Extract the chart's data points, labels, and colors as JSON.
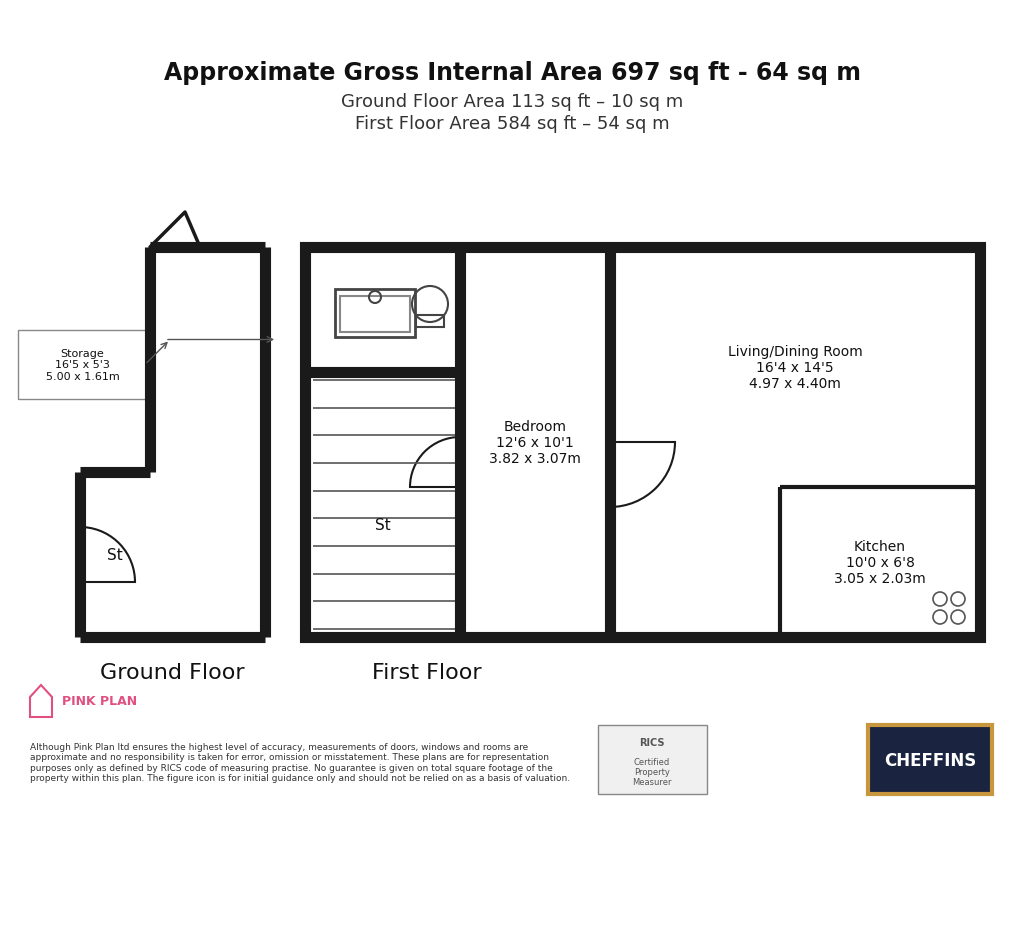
{
  "title_bold": "Approximate Gross Internal Area 697 sq ft - 64 sq m",
  "title_line2": "Ground Floor Area 113 sq ft – 10 sq m",
  "title_line3": "First Floor Area 584 sq ft – 54 sq m",
  "bg_color": "#ffffff",
  "wall_color": "#1a1a1a",
  "wall_lw": 8,
  "thin_wall_lw": 3,
  "ground_floor_label": "Ground Floor",
  "first_floor_label": "First Floor",
  "storage_label": "Storage\n16'5 x 5'3\n5.00 x 1.61m",
  "st_label_ground": "St",
  "st_label_first": "St",
  "bedroom_label": "Bedroom\n12'6 x 10'1\n3.82 x 3.07m",
  "living_label": "Living/Dining Room\n16'4 x 14'5\n4.97 x 4.40m",
  "kitchen_label": "Kitchen\n10'0 x 6'8\n3.05 x 2.03m",
  "disclaimer": "Although Pink Plan ltd ensures the highest level of accuracy, measurements of doors, windows and rooms are\napproximate and no responsibility is taken for error, omission or misstatement. These plans are for representation\npurposes only as defined by RICS code of measuring practise. No guarantee is given on total square footage of the\nproperty within this plan. The figure icon is for initial guidance only and should not be relied on as a basis of valuation.",
  "pink_plan_color": "#e05080",
  "cheffins_bg": "#1a2340",
  "cheffins_border": "#c8963c"
}
